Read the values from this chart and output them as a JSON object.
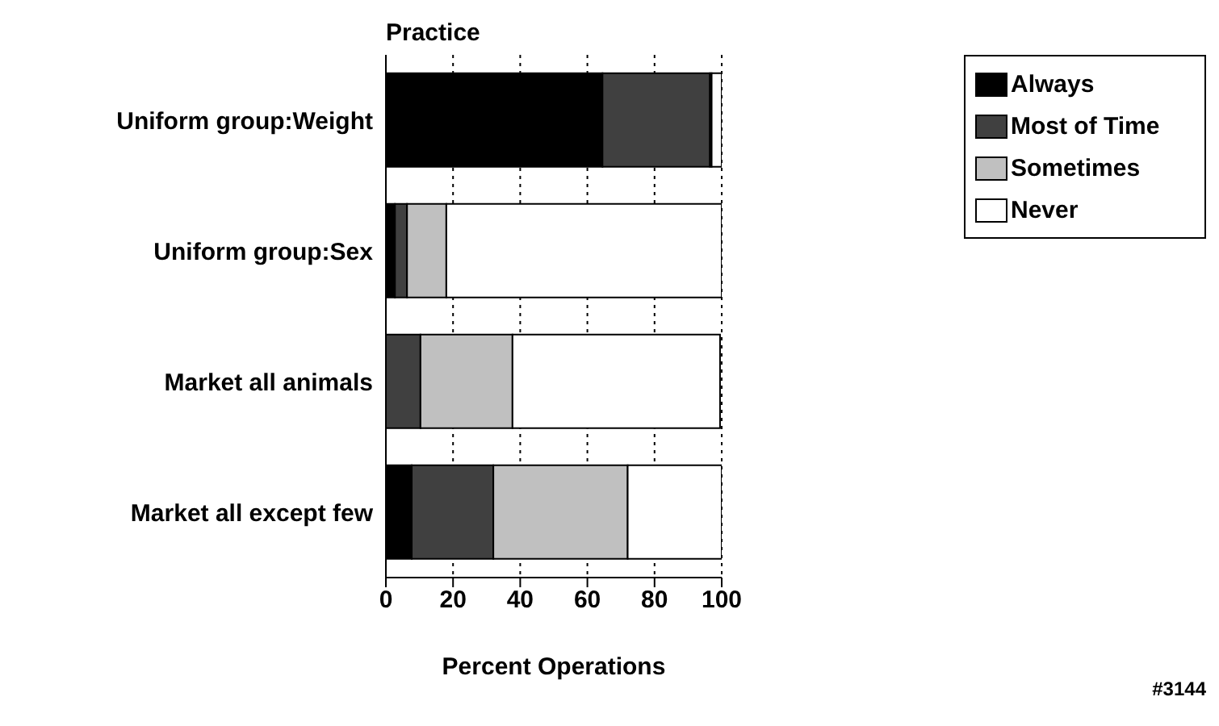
{
  "chart_data": {
    "type": "bar",
    "orientation": "horizontal",
    "stacked": true,
    "title": "Practice",
    "xlabel": "Percent Operations",
    "categories": [
      "Uniform group:Weight",
      "Uniform group:Sex",
      "Market all animals",
      "Market all except few"
    ],
    "series": [
      {
        "name": "Always",
        "color": "#000000",
        "values": [
          64.5,
          2.7,
          null,
          7.7
        ]
      },
      {
        "name": "Most of Time",
        "color": "#404040",
        "values": [
          32,
          3.6,
          10.3,
          24.3
        ]
      },
      {
        "name": "Sometimes",
        "color": "#c0c0c0",
        "values": [
          0.5,
          11.7,
          27.4,
          40
        ]
      },
      {
        "name": "Never",
        "color": "#ffffff",
        "values": [
          3,
          82,
          61.8,
          28
        ]
      }
    ],
    "xlim": [
      0,
      100
    ],
    "xticks": [
      0,
      20,
      40,
      60,
      80,
      100
    ],
    "grid": "x",
    "legend": "top right",
    "annotations": [
      "#3144"
    ]
  }
}
